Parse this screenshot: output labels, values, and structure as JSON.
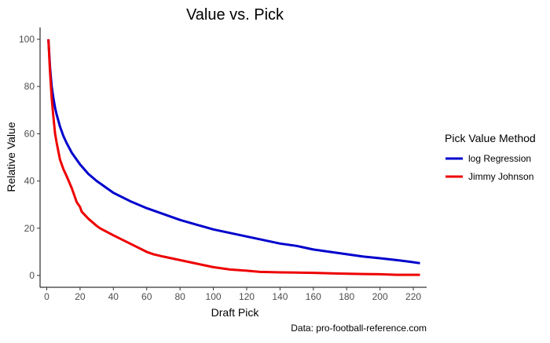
{
  "chart_data": {
    "type": "line",
    "title": "Value vs. Pick",
    "xlabel": "Draft Pick",
    "ylabel": "Relative Value",
    "caption": "Data: pro-football-reference.com",
    "xlim": [
      -4,
      228
    ],
    "ylim": [
      -5,
      105
    ],
    "x_ticks": [
      0,
      20,
      40,
      60,
      80,
      100,
      120,
      140,
      160,
      180,
      200,
      220
    ],
    "y_ticks": [
      0,
      20,
      40,
      60,
      80,
      100
    ],
    "grid": false,
    "legend": {
      "title": "Pick Value Method",
      "position": "right"
    },
    "series": [
      {
        "name": "log Regression",
        "color": "#0000CD",
        "points": [
          [
            1,
            100
          ],
          [
            2,
            88
          ],
          [
            3,
            80
          ],
          [
            4,
            75
          ],
          [
            5,
            71
          ],
          [
            6,
            68
          ],
          [
            8,
            63
          ],
          [
            10,
            59
          ],
          [
            12,
            56
          ],
          [
            15,
            52
          ],
          [
            20,
            47
          ],
          [
            25,
            43
          ],
          [
            30,
            40
          ],
          [
            35,
            37.5
          ],
          [
            40,
            35
          ],
          [
            50,
            31.5
          ],
          [
            60,
            28.5
          ],
          [
            70,
            26
          ],
          [
            80,
            23.5
          ],
          [
            90,
            21.5
          ],
          [
            100,
            19.5
          ],
          [
            110,
            18
          ],
          [
            120,
            16.5
          ],
          [
            130,
            15
          ],
          [
            140,
            13.5
          ],
          [
            150,
            12.5
          ],
          [
            160,
            11
          ],
          [
            170,
            10
          ],
          [
            180,
            9
          ],
          [
            190,
            8
          ],
          [
            200,
            7.3
          ],
          [
            210,
            6.5
          ],
          [
            218,
            5.8
          ],
          [
            224,
            5.2
          ]
        ]
      },
      {
        "name": "Jimmy Johnson",
        "color": "#EE0000",
        "points": [
          [
            1,
            100
          ],
          [
            2,
            86
          ],
          [
            3,
            75
          ],
          [
            4,
            67
          ],
          [
            5,
            60
          ],
          [
            6,
            56
          ],
          [
            8,
            49
          ],
          [
            10,
            45
          ],
          [
            12,
            42
          ],
          [
            15,
            37
          ],
          [
            18,
            31
          ],
          [
            20,
            29
          ],
          [
            21,
            27
          ],
          [
            25,
            24
          ],
          [
            30,
            21
          ],
          [
            32,
            20
          ],
          [
            40,
            17
          ],
          [
            50,
            13.5
          ],
          [
            60,
            10
          ],
          [
            64,
            9
          ],
          [
            70,
            8
          ],
          [
            80,
            6.5
          ],
          [
            90,
            5
          ],
          [
            100,
            3.5
          ],
          [
            110,
            2.5
          ],
          [
            120,
            2
          ],
          [
            128,
            1.5
          ],
          [
            140,
            1.3
          ],
          [
            150,
            1.2
          ],
          [
            160,
            1.1
          ],
          [
            175,
            0.8
          ],
          [
            190,
            0.6
          ],
          [
            200,
            0.5
          ],
          [
            210,
            0.3
          ],
          [
            224,
            0.3
          ]
        ]
      }
    ]
  }
}
